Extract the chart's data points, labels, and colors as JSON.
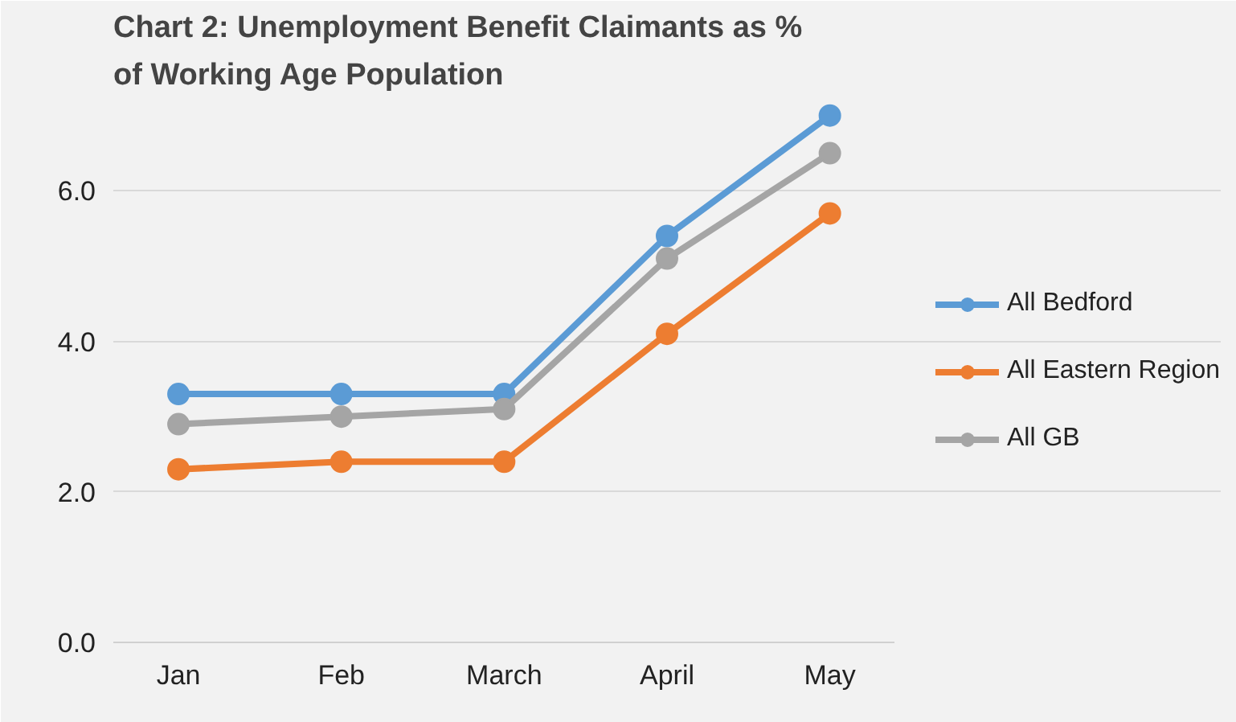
{
  "chart_data": {
    "type": "line",
    "title": "Chart 2: Unemployment Benefit Claimants as % of Working Age Population",
    "categories": [
      "Jan",
      "Feb",
      "March",
      "April",
      "May"
    ],
    "series": [
      {
        "name": "All Bedford",
        "color": "#5b9bd5",
        "values": [
          3.3,
          3.3,
          3.3,
          5.4,
          7.0
        ]
      },
      {
        "name": "All Eastern Region",
        "color": "#ed7d31",
        "values": [
          2.3,
          2.4,
          2.4,
          4.1,
          5.7
        ]
      },
      {
        "name": "All GB",
        "color": "#a5a5a5",
        "values": [
          2.9,
          3.0,
          3.1,
          5.1,
          6.5
        ]
      }
    ],
    "ylim": [
      0,
      7.2
    ],
    "yticks": [
      {
        "value": 0,
        "label": "0.0"
      },
      {
        "value": 2,
        "label": "2.0"
      },
      {
        "value": 4,
        "label": "4.0"
      },
      {
        "value": 6,
        "label": "6.0"
      }
    ],
    "grid": "y",
    "legend": "right",
    "marker": "circle",
    "line_style": "solid"
  }
}
